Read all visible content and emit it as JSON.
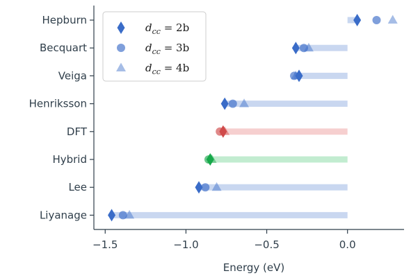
{
  "chart_data": {
    "type": "scatter",
    "xlabel": "Energy (eV)",
    "ylabel": "",
    "xlim": [
      -1.57,
      0.35
    ],
    "xticks": [
      -1.5,
      -1.0,
      -0.5,
      0.0
    ],
    "xtick_labels": [
      "−1.5",
      "−1.0",
      "−0.5",
      "0.0"
    ],
    "grid": false,
    "legend_position": "top-left",
    "categories": [
      "Hepburn",
      "Becquart",
      "Veiga",
      "Henriksson",
      "DFT",
      "Hybrid",
      "Lee",
      "Liyanage"
    ],
    "row_colors": [
      "#3a6cc8",
      "#3a6cc8",
      "#3a6cc8",
      "#3a6cc8",
      "#d04a4a",
      "#17a84a",
      "#3a6cc8",
      "#3a6cc8"
    ],
    "band_colors": [
      "#c9d7f0",
      "#c9d7f0",
      "#c9d7f0",
      "#c9d7f0",
      "#f6cfcf",
      "#c2ecd0",
      "#c9d7f0",
      "#c9d7f0"
    ],
    "series": [
      {
        "name_prefix": "d",
        "name_sub": "cc",
        "name_suffix": " = 2b",
        "marker": "diamond",
        "values": [
          0.06,
          -0.32,
          -0.3,
          -0.76,
          -0.77,
          -0.85,
          -0.92,
          -1.46
        ]
      },
      {
        "name_prefix": "d",
        "name_sub": "cc",
        "name_suffix": " = 3b",
        "marker": "circle",
        "values": [
          0.18,
          -0.27,
          -0.33,
          -0.71,
          -0.79,
          -0.86,
          -0.88,
          -1.39
        ]
      },
      {
        "name_prefix": "d",
        "name_sub": "cc",
        "name_suffix": " = 4b",
        "marker": "triangle",
        "values": [
          0.28,
          -0.24,
          -0.32,
          -0.64,
          -0.76,
          -0.84,
          -0.81,
          -1.35
        ]
      }
    ]
  }
}
